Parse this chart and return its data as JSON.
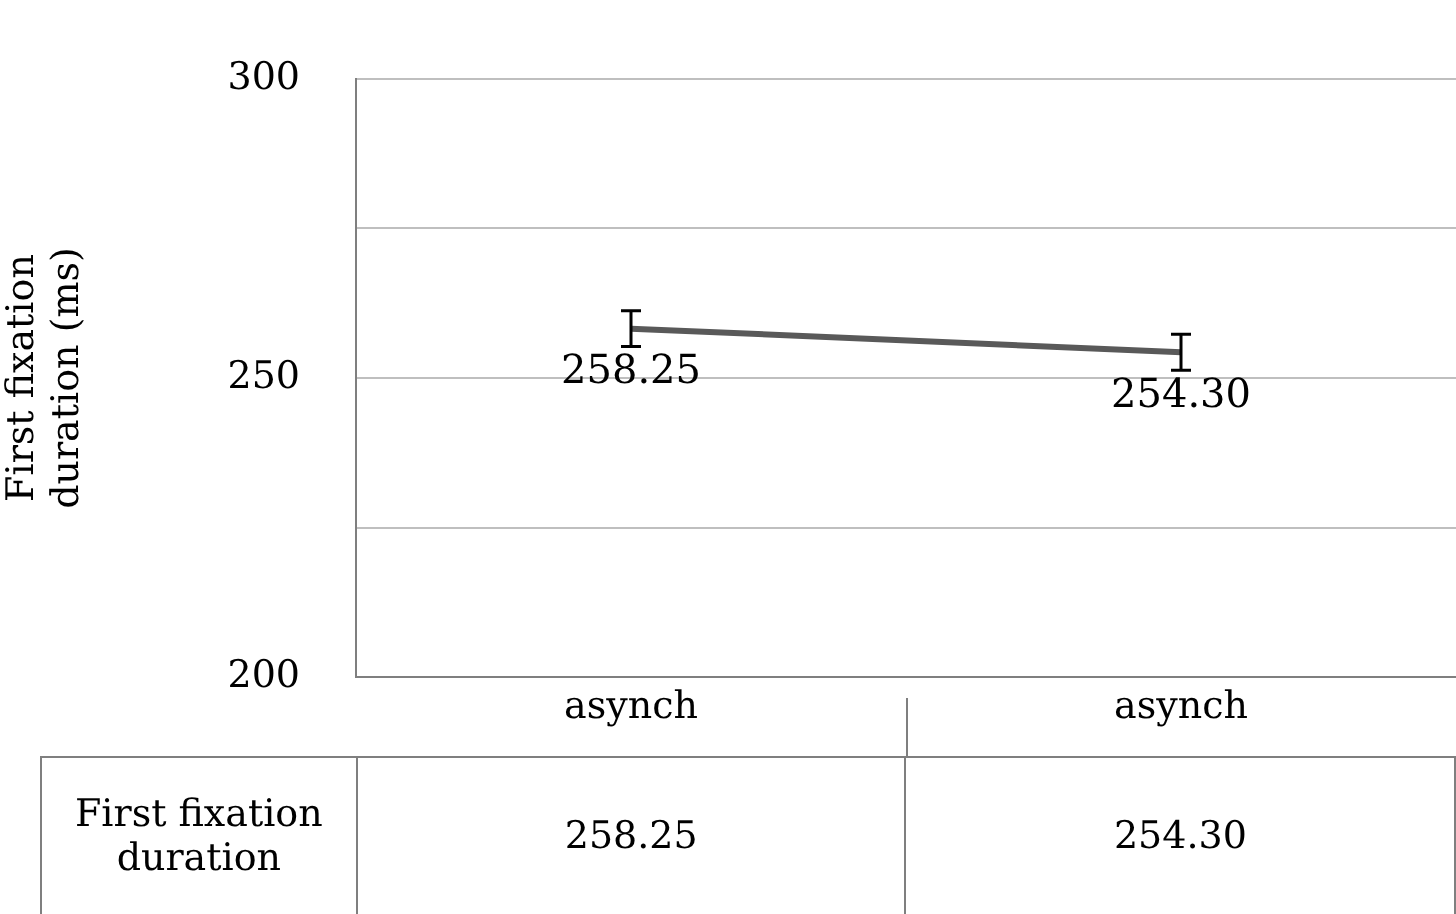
{
  "chart_data": {
    "type": "line",
    "ylabel": "First fixation duration (ms)",
    "categories": [
      "asynch",
      "asynch"
    ],
    "series": [
      {
        "name": "First fixation duration",
        "color": "#595959",
        "values": [
          258.25,
          254.3
        ],
        "errors": [
          3,
          3
        ],
        "value_labels": [
          "258.25",
          "254.30"
        ]
      }
    ],
    "ylim": [
      200,
      300
    ],
    "yticks": [
      200,
      {
        "value": 225,
        "label": null
      },
      250,
      {
        "value": 275,
        "label": null
      },
      300
    ],
    "grid": "y",
    "marker": "none",
    "line_style": "solid",
    "legend": false
  }
}
